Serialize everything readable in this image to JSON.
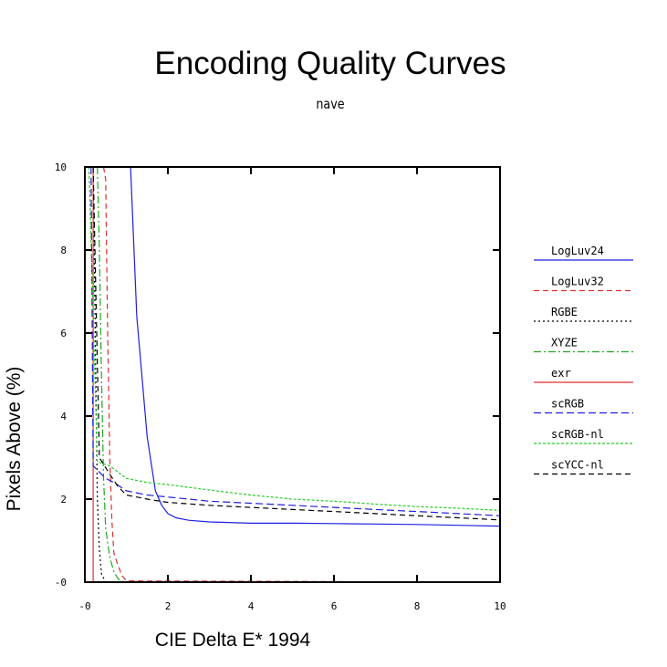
{
  "chart_data": {
    "type": "line",
    "title": "Encoding Quality Curves",
    "subtitle": "nave",
    "xlabel": "CIE Delta E* 1994",
    "ylabel": "Pixels Above (%)",
    "xlim": [
      0,
      10
    ],
    "ylim": [
      0,
      10
    ],
    "xticks": [
      "-0",
      "2",
      "4",
      "6",
      "8",
      "10"
    ],
    "yticks": [
      "-0",
      "2",
      "4",
      "6",
      "8",
      "10"
    ],
    "grid": false,
    "legend_position": "right",
    "series": [
      {
        "name": "LogLuv24",
        "color": "#1f1fe0",
        "dash": "",
        "x": [
          1.1,
          1.25,
          1.5,
          1.7,
          1.85,
          2.0,
          2.2,
          2.5,
          3.0,
          4.0,
          5.0,
          6.0,
          7.0,
          8.0,
          9.0,
          10.0
        ],
        "y": [
          10.0,
          6.4,
          3.5,
          2.2,
          1.85,
          1.65,
          1.55,
          1.49,
          1.45,
          1.42,
          1.42,
          1.41,
          1.4,
          1.39,
          1.37,
          1.35
        ]
      },
      {
        "name": "LogLuv32",
        "color": "#e03030",
        "dash": "6,4",
        "x": [
          0.45,
          0.5,
          0.55,
          0.6,
          0.65,
          0.7,
          0.8,
          0.9,
          1.0,
          10.0
        ],
        "y": [
          10.0,
          9.7,
          6.0,
          3.0,
          1.5,
          0.7,
          0.4,
          0.15,
          0.03,
          0.0
        ]
      },
      {
        "name": "RGBE",
        "color": "#000000",
        "dash": "2,3",
        "x": [
          0.2,
          0.25,
          0.3,
          0.35,
          0.4,
          0.5,
          10.0
        ],
        "y": [
          10.0,
          6.0,
          2.0,
          0.8,
          0.2,
          0.0,
          0.0
        ]
      },
      {
        "name": "XYZE",
        "color": "#1faa1f",
        "dash": "8,3,2,3",
        "x": [
          0.3,
          0.35,
          0.4,
          0.45,
          0.5,
          0.6,
          0.7,
          0.8,
          0.9,
          1.0,
          10.0
        ],
        "y": [
          10.0,
          8.0,
          5.0,
          2.5,
          1.3,
          0.6,
          0.25,
          0.08,
          0.02,
          0.0,
          0.0
        ]
      },
      {
        "name": "exr",
        "color": "#e03030",
        "dash": "",
        "x": [
          0.2,
          0.2,
          10.0
        ],
        "y": [
          10.0,
          0.0,
          0.0
        ]
      },
      {
        "name": "scRGB",
        "color": "#1f1fe0",
        "dash": "8,4",
        "x": [
          0.15,
          0.2,
          0.5,
          0.7,
          1.0,
          1.5,
          2.0,
          3.0,
          4.0,
          5.0,
          6.0,
          7.0,
          8.0,
          9.0,
          10.0
        ],
        "y": [
          10.0,
          2.8,
          2.5,
          2.4,
          2.2,
          2.1,
          2.05,
          1.95,
          1.9,
          1.85,
          1.8,
          1.75,
          1.7,
          1.65,
          1.6
        ]
      },
      {
        "name": "scRGB-nl",
        "color": "#22cc22",
        "dash": "3,2",
        "x": [
          0.1,
          0.3,
          0.6,
          0.8,
          1.0,
          1.5,
          2.0,
          3.0,
          4.0,
          5.0,
          6.0,
          7.0,
          8.0,
          9.0,
          10.0
        ],
        "y": [
          10.0,
          2.9,
          2.8,
          2.65,
          2.5,
          2.4,
          2.35,
          2.22,
          2.1,
          2.0,
          1.95,
          1.88,
          1.82,
          1.78,
          1.73
        ]
      },
      {
        "name": "scYCC-nl",
        "color": "#000000",
        "dash": "6,4",
        "x": [
          0.2,
          0.35,
          0.6,
          0.8,
          1.0,
          1.5,
          2.0,
          3.0,
          4.0,
          5.0,
          6.0,
          7.0,
          8.0,
          9.0,
          10.0
        ],
        "y": [
          10.0,
          3.0,
          2.6,
          2.3,
          2.1,
          2.0,
          1.92,
          1.85,
          1.8,
          1.75,
          1.7,
          1.65,
          1.6,
          1.55,
          1.5
        ]
      }
    ]
  }
}
